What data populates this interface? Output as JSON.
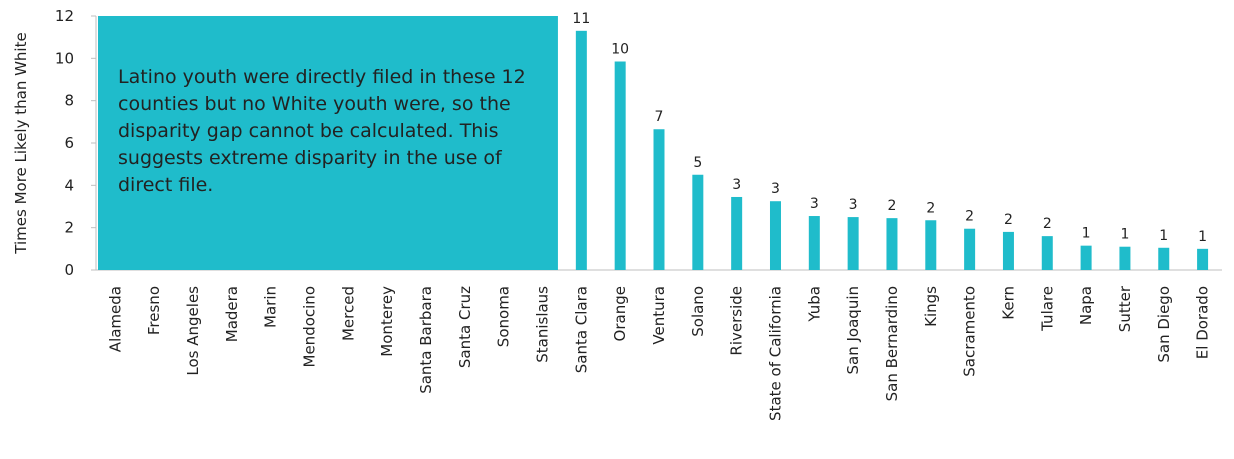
{
  "chart_data": {
    "type": "bar",
    "ylabel": "Times More Likely than White",
    "ylim": [
      0,
      12
    ],
    "yticks": [
      0,
      2,
      4,
      6,
      8,
      10,
      12
    ],
    "grid": false,
    "bar_color": "#1FBCCB",
    "categories": [
      "Alameda",
      "Fresno",
      "Los Angeles",
      "Madera",
      "Marin",
      "Mendocino",
      "Merced",
      "Monterey",
      "Santa Barbara",
      "Santa Cruz",
      "Sonoma",
      "Stanislaus",
      "Santa Clara",
      "Orange",
      "Ventura",
      "Solano",
      "Riverside",
      "State of California",
      "Yuba",
      "San Joaquin",
      "San Bernardino",
      "Kings",
      "Sacramento",
      "Kern",
      "Tulare",
      "Napa",
      "Sutter",
      "San Diego",
      "El Dorado"
    ],
    "values": [
      null,
      null,
      null,
      null,
      null,
      null,
      null,
      null,
      null,
      null,
      null,
      null,
      11.3,
      9.85,
      6.65,
      4.5,
      3.45,
      3.25,
      2.55,
      2.5,
      2.45,
      2.35,
      1.95,
      1.8,
      1.6,
      1.15,
      1.1,
      1.05,
      1.0
    ],
    "data_labels": [
      "",
      "",
      "",
      "",
      "",
      "",
      "",
      "",
      "",
      "",
      "",
      "",
      "11",
      "10",
      "7",
      "5",
      "3",
      "3",
      "3",
      "3",
      "2",
      "2",
      "2",
      "2",
      "2",
      "1",
      "1",
      "1",
      "1"
    ],
    "annotation": {
      "text": "Latino youth were directly filed in these 12 counties but no White youth were, so the disparity gap cannot be calculated. This suggests extreme disparity in the use of direct file.",
      "color": "#1FBCCB",
      "covers_categories": 12
    }
  }
}
